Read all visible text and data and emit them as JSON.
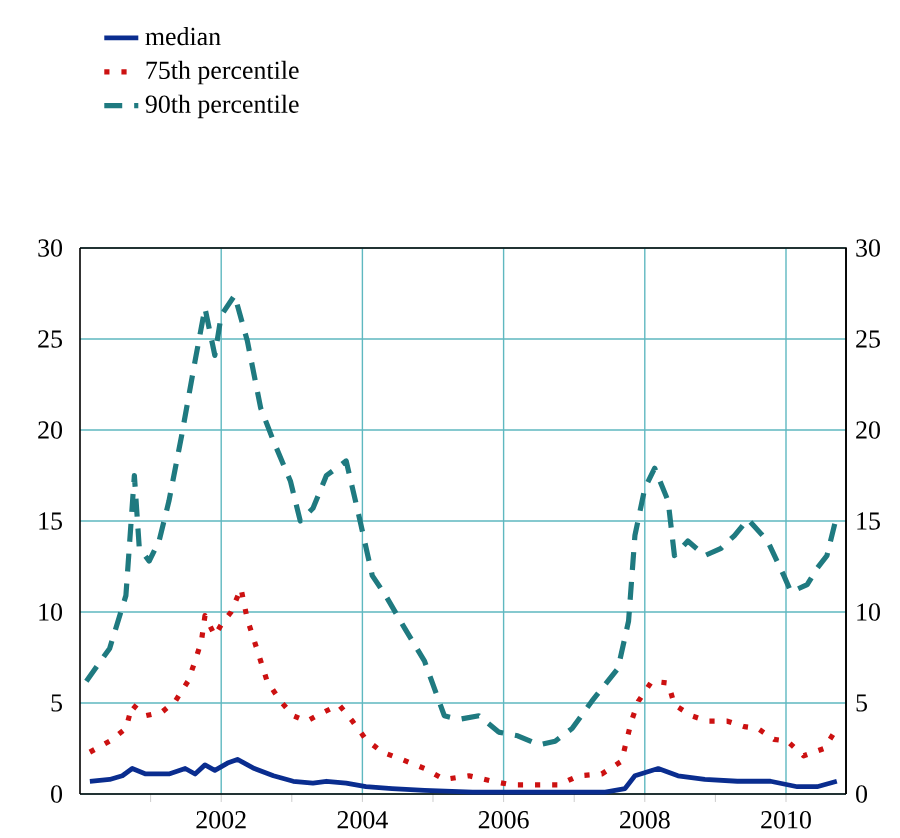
{
  "chart_data": {
    "type": "line",
    "xlim": [
      2000,
      2010.85
    ],
    "ylim": [
      0,
      30
    ],
    "y2lim": [
      0,
      30
    ],
    "xticks": [
      {
        "value": 2001,
        "label": null
      },
      2002,
      {
        "value": 2003,
        "label": null
      },
      2004,
      {
        "value": 2005,
        "label": null
      },
      2006,
      {
        "value": 2007,
        "label": null
      },
      2008,
      {
        "value": 2009,
        "label": null
      },
      2010
    ],
    "yticks": [
      0,
      5,
      10,
      15,
      20,
      25,
      30
    ],
    "y2ticks": [
      0,
      5,
      10,
      15,
      20,
      25,
      30
    ],
    "grid": true,
    "legend": "top",
    "marker": "none",
    "series": [
      {
        "name": "median",
        "color": "#0a2d8f",
        "line_style": "solid",
        "x": [
          2000.14,
          2000.42,
          2000.6,
          2000.74,
          2000.93,
          2001.26,
          2001.49,
          2001.63,
          2001.77,
          2001.91,
          2002.09,
          2002.23,
          2002.47,
          2002.74,
          2003.02,
          2003.3,
          2003.49,
          2003.77,
          2004.05,
          2004.42,
          2004.88,
          2005.56,
          2006.5,
          2007.44,
          2007.72,
          2007.86,
          2008.19,
          2008.47,
          2008.85,
          2009.31,
          2009.78,
          2010.16,
          2010.44,
          2010.72
        ],
        "values": [
          0.7,
          0.8,
          1.0,
          1.4,
          1.1,
          1.1,
          1.4,
          1.1,
          1.6,
          1.3,
          1.7,
          1.9,
          1.4,
          1.0,
          0.7,
          0.6,
          0.7,
          0.6,
          0.4,
          0.3,
          0.2,
          0.1,
          0.1,
          0.1,
          0.3,
          1.0,
          1.4,
          1.0,
          0.8,
          0.7,
          0.7,
          0.4,
          0.4,
          0.7
        ]
      },
      {
        "name": "75th percentile",
        "color": "#cc1111",
        "line_style": "dotted",
        "x": [
          2000.14,
          2000.42,
          2000.65,
          2000.74,
          2000.93,
          2001.16,
          2001.35,
          2001.53,
          2001.63,
          2001.72,
          2001.77,
          2001.91,
          2002.0,
          2002.14,
          2002.28,
          2002.37,
          2002.47,
          2002.56,
          2002.65,
          2002.84,
          2003.02,
          2003.21,
          2003.4,
          2003.67,
          2003.86,
          2004.05,
          2004.28,
          2004.56,
          2004.88,
          2005.16,
          2005.51,
          2005.84,
          2006.12,
          2006.45,
          2006.78,
          2007.06,
          2007.39,
          2007.67,
          2007.81,
          2007.91,
          2008.1,
          2008.33,
          2008.42,
          2008.66,
          2008.89,
          2009.17,
          2009.41,
          2009.6,
          2009.83,
          2010.02,
          2010.25,
          2010.54,
          2010.72
        ],
        "values": [
          2.3,
          2.9,
          3.6,
          4.9,
          4.3,
          4.5,
          5.1,
          6.2,
          7.3,
          8.4,
          9.8,
          8.7,
          9.3,
          10.0,
          11.3,
          9.6,
          8.4,
          7.3,
          6.2,
          5.1,
          4.3,
          4.0,
          4.4,
          4.9,
          4.0,
          3.0,
          2.3,
          1.9,
          1.4,
          0.8,
          1.0,
          0.7,
          0.5,
          0.5,
          0.5,
          1.0,
          1.1,
          1.8,
          4.0,
          5.1,
          6.2,
          6.1,
          4.9,
          4.3,
          4.0,
          4.0,
          3.7,
          3.6,
          3.0,
          2.9,
          2.1,
          2.5,
          3.6
        ]
      },
      {
        "name": "90th percentile",
        "color": "#1f7a80",
        "line_style": "dashed",
        "x": [
          2000.09,
          2000.42,
          2000.65,
          2000.77,
          2000.84,
          2000.98,
          2001.12,
          2001.26,
          2001.44,
          2001.63,
          2001.77,
          2001.91,
          2002.0,
          2002.19,
          2002.37,
          2002.56,
          2002.74,
          2002.98,
          2003.12,
          2003.3,
          2003.49,
          2003.77,
          2003.95,
          2004.14,
          2004.33,
          2004.6,
          2004.88,
          2005.16,
          2005.37,
          2005.65,
          2005.93,
          2006.2,
          2006.5,
          2006.73,
          2006.97,
          2007.25,
          2007.62,
          2007.77,
          2007.86,
          2008.0,
          2008.14,
          2008.33,
          2008.42,
          2008.61,
          2008.85,
          2009.08,
          2009.27,
          2009.46,
          2009.74,
          2009.97,
          2010.07,
          2010.3,
          2010.44,
          2010.58,
          2010.72
        ],
        "values": [
          6.2,
          8.0,
          10.9,
          17.5,
          13.5,
          12.8,
          13.9,
          16.1,
          19.7,
          23.8,
          26.7,
          24.1,
          26.3,
          27.4,
          24.9,
          21.2,
          19.4,
          17.2,
          15.0,
          15.7,
          17.5,
          18.3,
          15.3,
          12.0,
          10.9,
          9.1,
          7.3,
          4.3,
          4.1,
          4.3,
          3.4,
          3.2,
          2.7,
          2.9,
          3.6,
          5.1,
          6.9,
          9.5,
          14.2,
          16.8,
          17.9,
          16.1,
          13.1,
          13.9,
          13.1,
          13.5,
          14.2,
          15.1,
          13.9,
          12.0,
          11.1,
          11.5,
          12.4,
          13.1,
          15.3
        ]
      }
    ]
  }
}
